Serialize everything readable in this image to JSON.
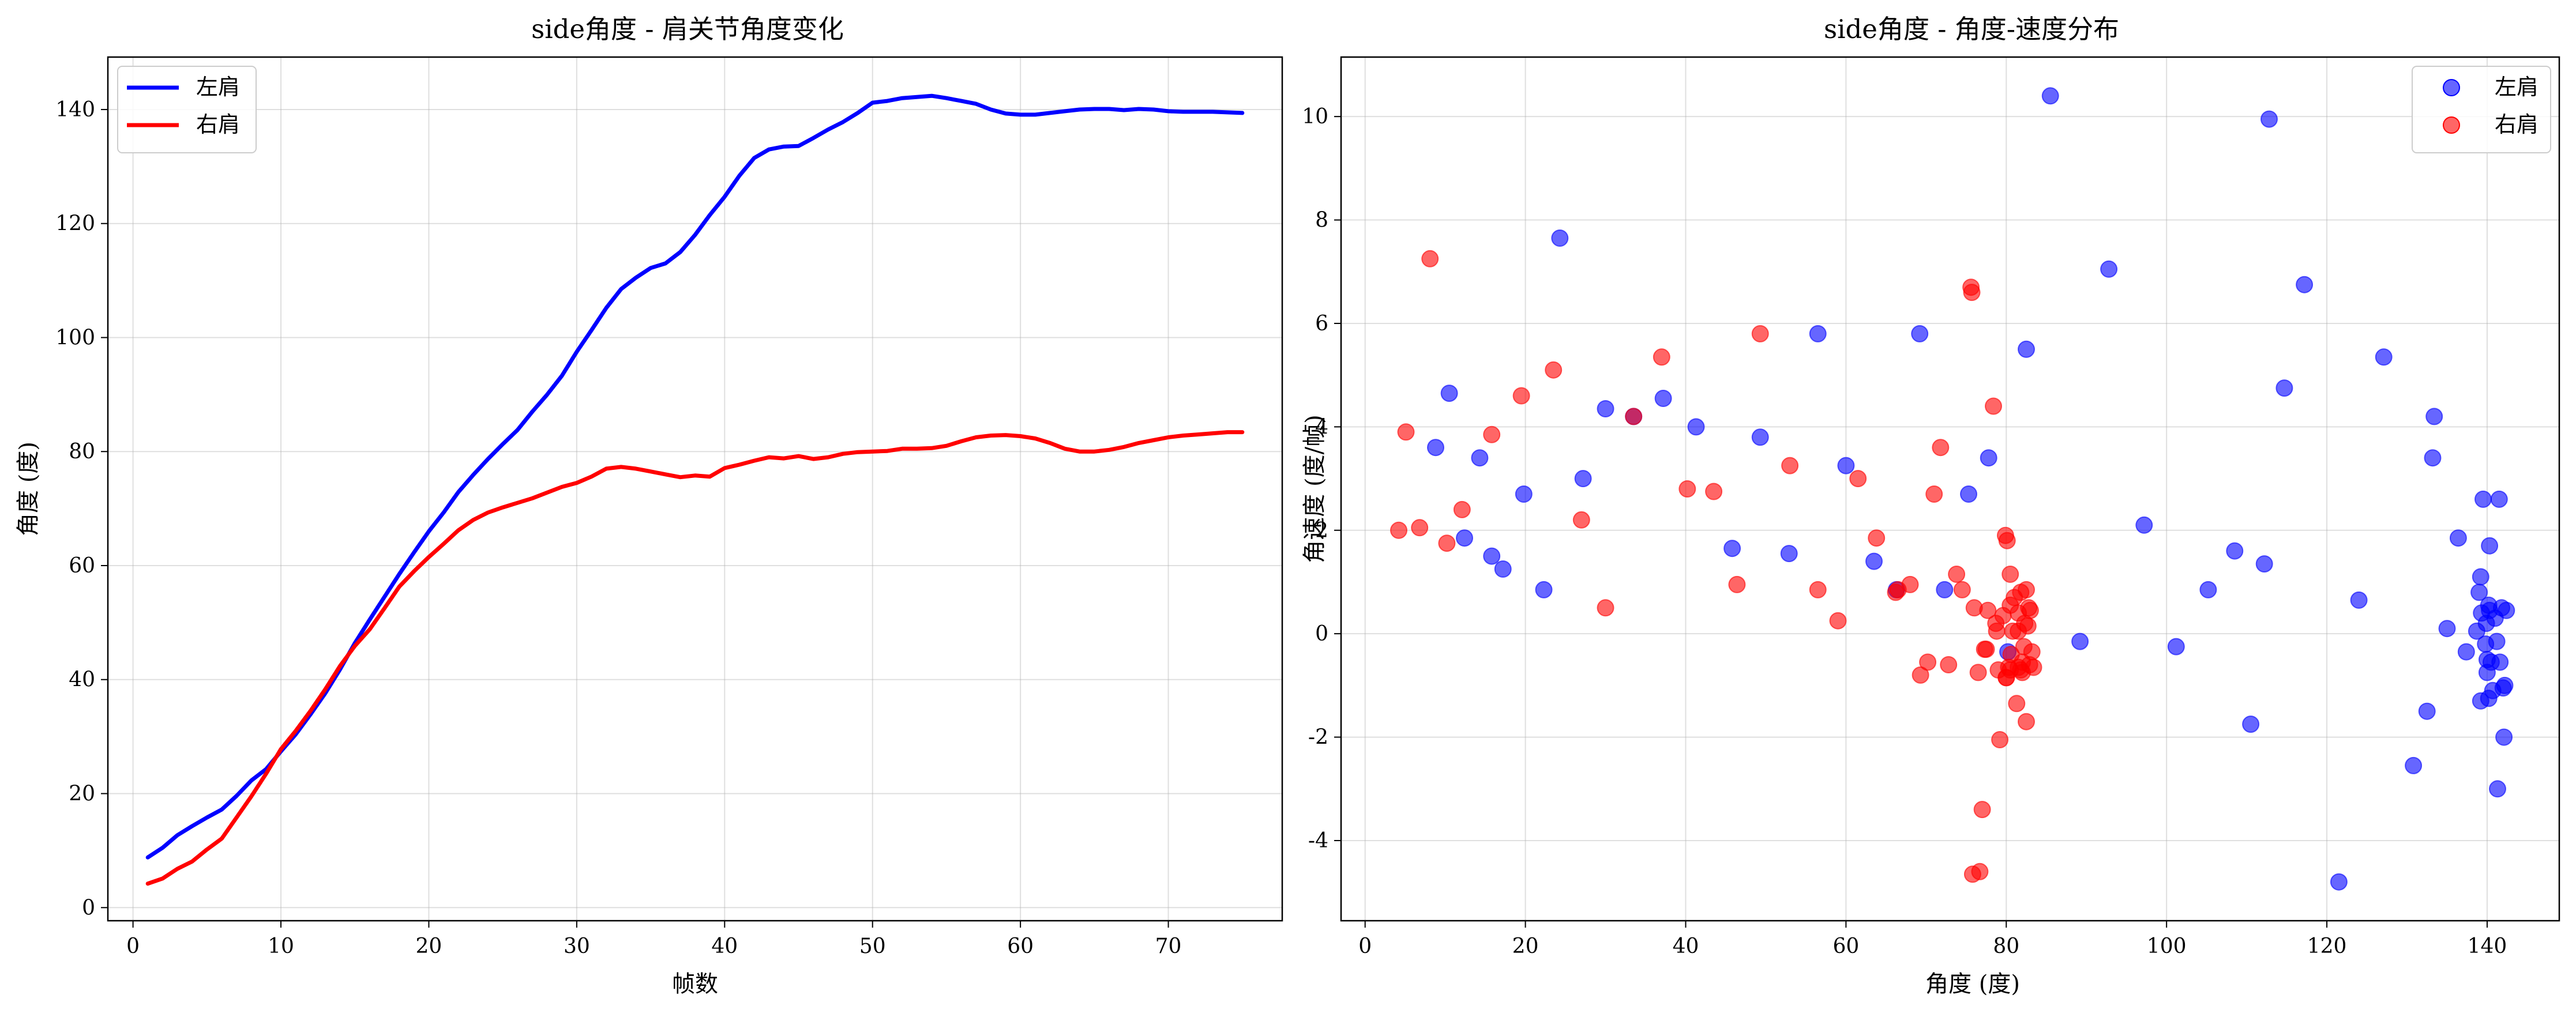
{
  "figure": {
    "background": "#ffffff"
  },
  "charts": [
    {
      "type": "line",
      "title": "side角度 - 肩关节角度变化",
      "xlabel": "帧数",
      "ylabel": "角度 (度)",
      "xlim": [
        -1.7,
        77.7
      ],
      "ylim": [
        -2.3,
        149.2
      ],
      "xticks": [
        0,
        10,
        20,
        30,
        40,
        50,
        60,
        70
      ],
      "yticks": [
        0,
        20,
        40,
        60,
        80,
        100,
        120,
        140
      ],
      "grid": true,
      "legend": "top-left",
      "series": [
        {
          "name": "左肩",
          "color": "#0000ff",
          "x": [
            1,
            2,
            3,
            4,
            5,
            6,
            7,
            8,
            9,
            10,
            11,
            12,
            13,
            14,
            15,
            16,
            17,
            18,
            19,
            20,
            21,
            22,
            23,
            24,
            25,
            26,
            27,
            28,
            29,
            30,
            31,
            32,
            33,
            34,
            35,
            36,
            37,
            38,
            39,
            40,
            41,
            42,
            43,
            44,
            45,
            46,
            47,
            48,
            49,
            50,
            51,
            52,
            53,
            54,
            55,
            56,
            57,
            58,
            59,
            60,
            61,
            62,
            63,
            64,
            65,
            66,
            67,
            68,
            69,
            70,
            71,
            72,
            73,
            74,
            75
          ],
          "y": [
            8.8,
            10.5,
            12.7,
            14.3,
            15.8,
            17.2,
            19.6,
            22.3,
            24.3,
            27.4,
            30.4,
            33.9,
            37.6,
            41.8,
            46.4,
            50.5,
            54.5,
            58.5,
            62.3,
            66.0,
            69.3,
            72.9,
            75.9,
            78.7,
            81.3,
            83.8,
            87.0,
            90.0,
            93.3,
            97.5,
            101.3,
            105.2,
            108.5,
            110.5,
            112.2,
            113.0,
            115.0,
            118.0,
            121.5,
            124.7,
            128.4,
            131.5,
            133.0,
            133.5,
            133.6,
            135.0,
            136.5,
            137.8,
            139.4,
            141.2,
            141.5,
            142.0,
            142.2,
            142.4,
            142.0,
            141.5,
            141.0,
            140.0,
            139.3,
            139.1,
            139.1,
            139.4,
            139.7,
            140.0,
            140.1,
            140.1,
            139.9,
            140.1,
            140.0,
            139.7,
            139.6,
            139.6,
            139.6,
            139.5,
            139.4
          ]
        },
        {
          "name": "右肩",
          "color": "#ff0000",
          "x": [
            1,
            2,
            3,
            4,
            5,
            6,
            7,
            8,
            9,
            10,
            11,
            12,
            13,
            14,
            15,
            16,
            17,
            18,
            19,
            20,
            21,
            22,
            23,
            24,
            25,
            26,
            27,
            28,
            29,
            30,
            31,
            32,
            33,
            34,
            35,
            36,
            37,
            38,
            39,
            40,
            41,
            42,
            43,
            44,
            45,
            46,
            47,
            48,
            49,
            50,
            51,
            52,
            53,
            54,
            55,
            56,
            57,
            58,
            59,
            60,
            61,
            62,
            63,
            64,
            65,
            66,
            67,
            68,
            69,
            70,
            71,
            72,
            73,
            74,
            75
          ],
          "y": [
            4.2,
            5.1,
            6.8,
            8.1,
            10.2,
            12.1,
            15.8,
            19.5,
            23.5,
            27.8,
            31.0,
            34.5,
            38.3,
            42.4,
            45.9,
            48.8,
            52.5,
            56.3,
            59.0,
            61.5,
            63.8,
            66.2,
            68.0,
            69.3,
            70.2,
            71.0,
            71.8,
            72.8,
            73.8,
            74.5,
            75.6,
            77.0,
            77.3,
            77.0,
            76.5,
            76.0,
            75.5,
            75.8,
            75.6,
            77.1,
            77.7,
            78.4,
            79.0,
            78.8,
            79.2,
            78.7,
            79.0,
            79.6,
            79.9,
            80.0,
            80.1,
            80.5,
            80.5,
            80.6,
            81.0,
            81.8,
            82.5,
            82.8,
            82.9,
            82.7,
            82.3,
            81.5,
            80.5,
            80.0,
            80.0,
            80.3,
            80.8,
            81.5,
            82.0,
            82.5,
            82.8,
            83.0,
            83.2,
            83.4,
            83.4
          ]
        }
      ]
    },
    {
      "type": "scatter",
      "title": "side角度 - 角度-速度分布",
      "xlabel": "角度 (度)",
      "ylabel": "角速度 (度/帧)",
      "xlim": [
        -3.0,
        149.0
      ],
      "ylim": [
        -5.55,
        11.15
      ],
      "xticks": [
        0,
        20,
        40,
        60,
        80,
        100,
        120,
        140
      ],
      "yticks": [
        -4,
        -2,
        0,
        2,
        4,
        6,
        8,
        10
      ],
      "grid": true,
      "legend": "top-right",
      "series": [
        {
          "name": "左肩",
          "color": "#0000ff",
          "points": [
            [
              10.5,
              4.65
            ],
            [
              8.8,
              3.6
            ],
            [
              14.3,
              3.4
            ],
            [
              12.4,
              1.85
            ],
            [
              15.8,
              1.5
            ],
            [
              17.2,
              1.25
            ],
            [
              19.8,
              2.7
            ],
            [
              22.3,
              0.85
            ],
            [
              24.3,
              7.65
            ],
            [
              27.2,
              3.0
            ],
            [
              30.0,
              4.35
            ],
            [
              33.5,
              4.2
            ],
            [
              37.2,
              4.55
            ],
            [
              41.3,
              4.0
            ],
            [
              45.8,
              1.65
            ],
            [
              49.3,
              3.8
            ],
            [
              52.9,
              1.55
            ],
            [
              56.5,
              5.8
            ],
            [
              60.0,
              3.25
            ],
            [
              63.5,
              1.4
            ],
            [
              66.3,
              0.85
            ],
            [
              69.2,
              5.8
            ],
            [
              72.3,
              0.85
            ],
            [
              75.3,
              2.7
            ],
            [
              77.8,
              3.4
            ],
            [
              80.2,
              -0.35
            ],
            [
              82.5,
              5.5
            ],
            [
              85.5,
              10.4
            ],
            [
              89.2,
              -0.15
            ],
            [
              92.8,
              7.05
            ],
            [
              97.2,
              2.1
            ],
            [
              101.2,
              -0.25
            ],
            [
              105.2,
              0.85
            ],
            [
              108.5,
              1.6
            ],
            [
              110.5,
              -1.75
            ],
            [
              112.2,
              1.35
            ],
            [
              112.8,
              9.95
            ],
            [
              114.7,
              4.75
            ],
            [
              117.2,
              6.75
            ],
            [
              121.5,
              -4.8
            ],
            [
              124.0,
              0.65
            ],
            [
              127.1,
              5.35
            ],
            [
              130.8,
              -2.55
            ],
            [
              132.5,
              -1.5
            ],
            [
              133.2,
              3.4
            ],
            [
              133.4,
              4.2
            ],
            [
              135.0,
              0.1
            ],
            [
              136.4,
              1.85
            ],
            [
              137.4,
              -0.35
            ],
            [
              138.7,
              0.05
            ],
            [
              139.0,
              0.8
            ],
            [
              139.2,
              1.1
            ],
            [
              139.3,
              0.4
            ],
            [
              139.2,
              -1.3
            ],
            [
              139.5,
              2.6
            ],
            [
              139.8,
              -0.2
            ],
            [
              139.9,
              0.2
            ],
            [
              140.0,
              -0.5
            ],
            [
              140.2,
              0.55
            ],
            [
              140.0,
              -0.75
            ],
            [
              140.3,
              1.7
            ],
            [
              140.2,
              -1.25
            ],
            [
              140.3,
              0.45
            ],
            [
              140.5,
              -0.55
            ],
            [
              140.7,
              -1.1
            ],
            [
              141.0,
              0.3
            ],
            [
              141.2,
              -0.15
            ],
            [
              141.5,
              2.6
            ],
            [
              141.3,
              -3.0
            ],
            [
              141.6,
              -0.55
            ],
            [
              141.8,
              0.5
            ],
            [
              142.0,
              -1.05
            ],
            [
              142.1,
              -2.0
            ],
            [
              142.2,
              -1.0
            ],
            [
              142.4,
              0.45
            ]
          ]
        },
        {
          "name": "右肩",
          "color": "#ff0000",
          "points": [
            [
              4.2,
              2.0
            ],
            [
              5.1,
              3.9
            ],
            [
              6.8,
              2.05
            ],
            [
              8.1,
              7.25
            ],
            [
              10.2,
              1.75
            ],
            [
              12.1,
              2.4
            ],
            [
              15.8,
              3.85
            ],
            [
              19.5,
              4.6
            ],
            [
              23.5,
              5.1
            ],
            [
              27.0,
              2.2
            ],
            [
              30.0,
              0.5
            ],
            [
              33.5,
              4.2
            ],
            [
              37.0,
              5.35
            ],
            [
              40.2,
              2.8
            ],
            [
              43.5,
              2.75
            ],
            [
              46.4,
              0.95
            ],
            [
              49.3,
              5.8
            ],
            [
              53.0,
              3.25
            ],
            [
              56.5,
              0.85
            ],
            [
              59.0,
              0.25
            ],
            [
              61.5,
              3.0
            ],
            [
              63.8,
              1.85
            ],
            [
              66.2,
              0.8
            ],
            [
              66.5,
              0.85
            ],
            [
              68.0,
              0.95
            ],
            [
              69.3,
              -0.8
            ],
            [
              70.2,
              -0.55
            ],
            [
              71.0,
              2.7
            ],
            [
              71.8,
              3.6
            ],
            [
              72.8,
              -0.6
            ],
            [
              73.8,
              1.15
            ],
            [
              74.5,
              0.85
            ],
            [
              75.6,
              6.7
            ],
            [
              75.7,
              6.6
            ],
            [
              76.0,
              0.5
            ],
            [
              76.5,
              -0.75
            ],
            [
              77.0,
              -3.4
            ],
            [
              76.7,
              -4.6
            ],
            [
              75.8,
              -4.65
            ],
            [
              77.3,
              -0.3
            ],
            [
              77.5,
              -0.3
            ],
            [
              77.7,
              0.45
            ],
            [
              78.4,
              4.4
            ],
            [
              78.8,
              0.05
            ],
            [
              79.0,
              -0.7
            ],
            [
              79.2,
              -2.05
            ],
            [
              78.7,
              0.2
            ],
            [
              79.6,
              0.35
            ],
            [
              79.9,
              1.9
            ],
            [
              80.0,
              -0.85
            ],
            [
              80.1,
              1.8
            ],
            [
              80.5,
              1.15
            ],
            [
              80.5,
              0.55
            ],
            [
              80.6,
              -0.4
            ],
            [
              81.0,
              0.7
            ],
            [
              81.5,
              0.05
            ],
            [
              81.8,
              0.8
            ],
            [
              81.8,
              -0.7
            ],
            [
              82.0,
              -0.55
            ],
            [
              82.2,
              -0.25
            ],
            [
              82.5,
              0.85
            ],
            [
              82.8,
              0.5
            ],
            [
              82.9,
              -0.6
            ],
            [
              82.7,
              0.15
            ],
            [
              82.3,
              0.2
            ],
            [
              81.5,
              -0.65
            ],
            [
              81.3,
              -1.35
            ],
            [
              80.5,
              -0.7
            ],
            [
              80.0,
              -0.85
            ],
            [
              80.3,
              -0.65
            ],
            [
              80.8,
              0.05
            ],
            [
              81.5,
              0.4
            ],
            [
              82.0,
              -0.75
            ],
            [
              82.5,
              -1.7
            ],
            [
              83.0,
              0.45
            ],
            [
              83.2,
              -0.35
            ],
            [
              83.4,
              -0.65
            ]
          ]
        }
      ]
    }
  ]
}
